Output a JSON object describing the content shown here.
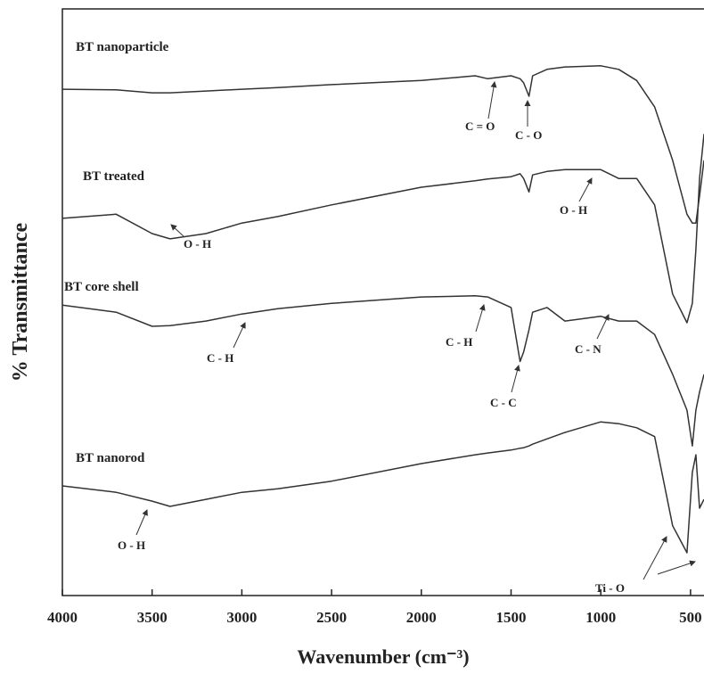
{
  "chart_data": {
    "type": "line",
    "title": null,
    "x_label": "Wavenumber (cm⁻³)",
    "y_label": "% Transmittance",
    "x": [
      4000,
      3700,
      3500,
      3400,
      3200,
      3000,
      2800,
      2500,
      2000,
      1700,
      1630,
      1500,
      1450,
      1430,
      1400,
      1380,
      1300,
      1200,
      1000,
      900,
      800,
      700,
      600,
      520,
      490,
      470,
      450,
      425
    ],
    "xlim": [
      4000,
      425
    ],
    "ylim": [
      0,
      100
    ],
    "xticks": [
      4000,
      3500,
      3000,
      2500,
      2000,
      1500,
      1000,
      500
    ],
    "series": [
      {
        "name": "BT nanoparticle",
        "color": "#333333",
        "values": [
          86.3,
          86.2,
          85.7,
          85.7,
          86.0,
          86.3,
          86.6,
          87.1,
          87.8,
          88.6,
          88.1,
          88.6,
          88.1,
          87.4,
          85.1,
          88.6,
          89.7,
          90.1,
          90.3,
          89.7,
          87.8,
          83.3,
          74.2,
          65.0,
          63.5,
          63.5,
          68.1,
          74.2
        ]
      },
      {
        "name": "BT treated",
        "color": "#333333",
        "values": [
          64.3,
          65.0,
          61.7,
          60.8,
          61.7,
          63.5,
          64.6,
          66.6,
          69.6,
          70.7,
          71.0,
          71.4,
          71.9,
          71.1,
          68.8,
          71.7,
          72.3,
          72.6,
          72.6,
          71.1,
          71.1,
          66.6,
          51.4,
          46.5,
          49.8,
          59.0,
          71.1,
          78.7
        ]
      },
      {
        "name": "BT core shell",
        "color": "#333333",
        "values": [
          49.5,
          48.3,
          45.9,
          46.0,
          46.8,
          48.0,
          48.9,
          49.8,
          50.9,
          51.1,
          50.9,
          49.1,
          39.9,
          41.5,
          45.3,
          48.3,
          49.1,
          46.8,
          47.6,
          46.8,
          46.8,
          44.5,
          37.7,
          31.6,
          25.5,
          31.6,
          34.7,
          37.7
        ]
      },
      {
        "name": "BT nanorod",
        "color": "#333333",
        "values": [
          18.7,
          17.6,
          16.1,
          15.2,
          16.4,
          17.6,
          18.2,
          19.5,
          22.5,
          24.0,
          24.3,
          24.8,
          25.1,
          25.2,
          25.5,
          25.8,
          26.7,
          27.8,
          29.6,
          29.3,
          28.6,
          27.1,
          11.9,
          7.3,
          21.0,
          24.0,
          14.9,
          16.4
        ]
      }
    ],
    "annotations": [
      "C = O",
      "C - O",
      "O - H",
      "O - H",
      "C - H",
      "C - H",
      "C - C",
      "C - N",
      "O - H",
      "Ti - O"
    ]
  }
}
